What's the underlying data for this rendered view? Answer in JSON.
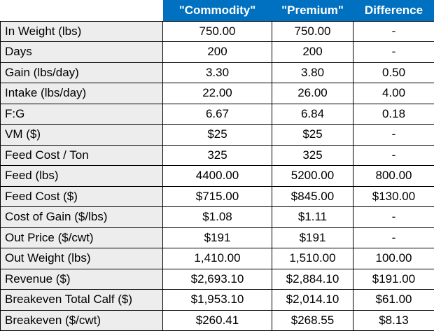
{
  "table": {
    "header": [
      "",
      "\"Commodity\"",
      "\"Premium\"",
      "Difference"
    ],
    "rows": [
      [
        "In Weight (lbs)",
        "750.00",
        "750.00",
        "-"
      ],
      [
        "Days",
        "200",
        "200",
        "-"
      ],
      [
        "Gain (lbs/day)",
        "3.30",
        "3.80",
        "0.50"
      ],
      [
        "Intake (lbs/day)",
        "22.00",
        "26.00",
        "4.00"
      ],
      [
        "F:G",
        "6.67",
        "6.84",
        "0.18"
      ],
      [
        "VM ($)",
        "$25",
        "$25",
        "-"
      ],
      [
        "Feed Cost / Ton",
        "325",
        "325",
        "-"
      ],
      [
        "Feed (lbs)",
        "4400.00",
        "5200.00",
        "800.00"
      ],
      [
        "Feed Cost ($)",
        "$715.00",
        "$845.00",
        "$130.00"
      ],
      [
        "Cost of Gain ($/lbs)",
        "$1.08",
        "$1.11",
        "-"
      ],
      [
        "Out Price ($/cwt)",
        "$191",
        "$191",
        "-"
      ],
      [
        "Out Weight (lbs)",
        "1,410.00",
        "1,510.00",
        "100.00"
      ],
      [
        "Revenue ($)",
        "$2,693.10",
        "$2,884.10",
        "$191.00"
      ],
      [
        "Breakeven Total Calf ($)",
        "$1,953.10",
        "$2,014.10",
        "$61.00"
      ],
      [
        "Breakeven ($/cwt)",
        "$260.41",
        "$268.55",
        "$8.13"
      ]
    ]
  }
}
